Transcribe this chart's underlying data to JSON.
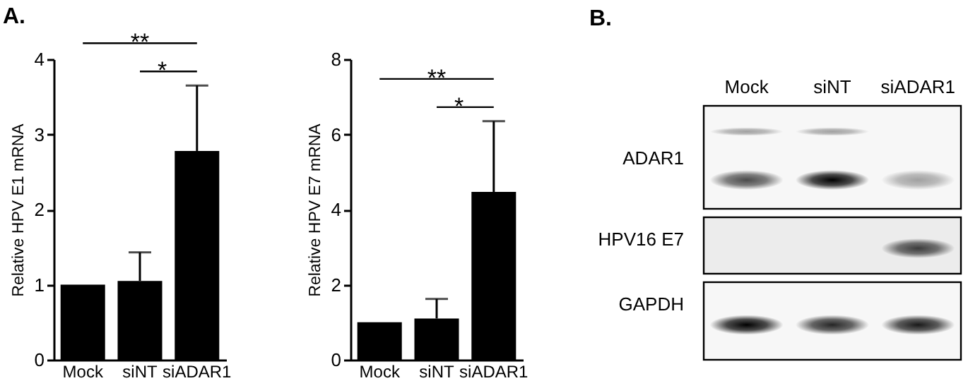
{
  "chart_data": [
    {
      "type": "bar",
      "title": "A.",
      "ylabel": "Relative HPV E1 mRNA",
      "categories": [
        "Mock",
        "siNT",
        "siADAR1"
      ],
      "values": [
        1.0,
        1.05,
        2.78
      ],
      "errors": [
        null,
        [
          1.05,
          1.43
        ],
        [
          2.78,
          3.65
        ]
      ],
      "color": "#000000",
      "ylim": [
        0,
        4
      ],
      "yticks": [
        0,
        1,
        2,
        3,
        4
      ],
      "annotations": [
        "**",
        "*"
      ]
    },
    {
      "type": "bar",
      "ylabel": "Relative HPV E7 mRNA",
      "categories": [
        "Mock",
        "siNT",
        "siADAR1"
      ],
      "values": [
        1.0,
        1.1,
        4.47
      ],
      "errors": [
        null,
        [
          1.1,
          1.62
        ],
        [
          4.47,
          6.35
        ]
      ],
      "color": "#000000",
      "ylim": [
        0,
        8
      ],
      "yticks": [
        0,
        2,
        4,
        6,
        8
      ],
      "annotations": [
        "**",
        "*"
      ]
    },
    {
      "type": "other",
      "title": "B.",
      "categories": [
        "Mock",
        "siNT",
        "siADAR1"
      ],
      "y_categories": [
        "ADAR1",
        "HPV16 E7",
        "GAPDH"
      ]
    }
  ]
}
